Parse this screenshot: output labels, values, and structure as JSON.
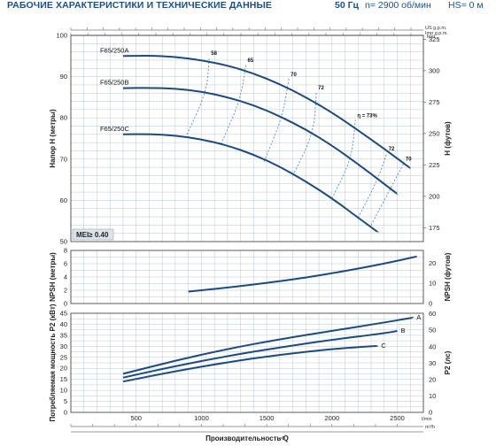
{
  "header": {
    "title": "РАБОЧИЕ ХАРАКТЕРИСТИКИ И ТЕХНИЧЕСКИЕ ДАННЫЕ",
    "frequency": "50 Гц",
    "rpm": "n= 2900 об/мин",
    "hs": "HS= 0 м"
  },
  "colors": {
    "curve": "#1a4a85",
    "eff_line": "#3d7fc4",
    "grid": "#b9c6d6",
    "frame": "#333333"
  },
  "chart_data": [
    {
      "type": "line",
      "title": "",
      "ylabel": "Напор H (метры)",
      "y2label": "H (футов)",
      "top_axis_labels": [
        "US g.p.m.",
        "Imp g.p.m."
      ],
      "top_ticks_us": [
        "0",
        "100",
        "200",
        "300",
        "400",
        "500",
        "600",
        "700",
        "800",
        "900",
        "1000",
        "1100",
        "1200",
        "1300",
        "1400",
        "1500",
        "1600",
        "1700",
        "1800",
        "1900",
        "2000",
        "2100"
      ],
      "top_ticks_imp": [
        "0",
        "100",
        "200",
        "300",
        "400",
        "500",
        "600",
        "700",
        "800",
        "900",
        "1000",
        "1100",
        "1200",
        "1300",
        "1400",
        "1500",
        "1600",
        "1700",
        "1800",
        "1900",
        "2000"
      ],
      "x_unit": "l/min",
      "xlim": [
        0,
        2700
      ],
      "ylim": [
        50,
        100
      ],
      "yticks": [
        50,
        60,
        70,
        80,
        90,
        100
      ],
      "y2_unit": "feet",
      "y2ticks": [
        175,
        200,
        225,
        250,
        275,
        300,
        325
      ],
      "badge": "MEI≥ 0.40",
      "series": [
        {
          "name": "F65/250A",
          "x": [
            400,
            600,
            800,
            1000,
            1200,
            1400,
            1600,
            1800,
            2000,
            2200,
            2400,
            2600
          ],
          "y": [
            95,
            95.1,
            94.8,
            94,
            92.7,
            90.8,
            88.2,
            85,
            81.3,
            77,
            72.5,
            67.8
          ]
        },
        {
          "name": "F65/250B",
          "x": [
            400,
            600,
            800,
            1000,
            1200,
            1400,
            1600,
            1800,
            2000,
            2200,
            2400,
            2500
          ],
          "y": [
            87.2,
            87.3,
            87.1,
            86.4,
            85,
            83.1,
            80.4,
            77.2,
            73.3,
            68.8,
            64,
            61.6
          ]
        },
        {
          "name": "F65/250C",
          "x": [
            400,
            600,
            800,
            1000,
            1200,
            1400,
            1600,
            1800,
            2000,
            2200,
            2350
          ],
          "y": [
            76,
            76.1,
            75.7,
            74.8,
            73.3,
            71.1,
            68.2,
            64.6,
            60.5,
            55.8,
            52.3
          ]
        }
      ],
      "efficiency_lines": [
        {
          "label": "58",
          "points": [
            [
              890,
              76
            ],
            [
              1040,
              86.3
            ],
            [
              1060,
              94.6
            ]
          ]
        },
        {
          "label": "65",
          "points": [
            [
              1150,
              73.6
            ],
            [
              1300,
              84.5
            ],
            [
              1340,
              92.9
            ]
          ]
        },
        {
          "label": "70",
          "points": [
            [
              1480,
              69.4
            ],
            [
              1620,
              80.2
            ],
            [
              1670,
              89.5
            ]
          ]
        },
        {
          "label": "72",
          "points": [
            [
              1700,
              66
            ],
            [
              1860,
              76.3
            ],
            [
              1880,
              86.3
            ]
          ]
        },
        {
          "label": "η = 73%",
          "points": [
            [
              2000,
              60.5
            ],
            [
              2150,
              70
            ],
            [
              2180,
              79.5
            ]
          ]
        },
        {
          "label": "72",
          "points": [
            [
              2200,
              55.8
            ],
            [
              2350,
              65
            ],
            [
              2420,
              71.5
            ]
          ]
        },
        {
          "label": "70",
          "points": [
            [
              2300,
              54
            ],
            [
              2450,
              63
            ],
            [
              2550,
              69
            ]
          ]
        }
      ]
    },
    {
      "type": "line",
      "ylabel": "NPSH (метры)",
      "y2label": "NPSH (футов)",
      "ylim": [
        0,
        8
      ],
      "yticks": [
        0,
        2,
        4,
        6,
        8
      ],
      "y2ticks": [
        0,
        10,
        20
      ],
      "series": [
        {
          "name": "NPSH",
          "x": [
            900,
            1200,
            1500,
            1800,
            2100,
            2400,
            2650
          ],
          "y": [
            1.8,
            2.4,
            3.1,
            3.9,
            4.9,
            6.0,
            7.1
          ]
        }
      ]
    },
    {
      "type": "line",
      "ylabel": "Потребляемая мощность P2 (кВт)",
      "y2label": "P2 (лс)",
      "xlabel": "Производительность Q",
      "x_unit": "l/min",
      "xlim": [
        0,
        2700
      ],
      "xticks": [
        500,
        1000,
        1500,
        2000,
        2500
      ],
      "x_bottom_ticks": [
        0,
        10,
        20,
        30,
        40,
        50,
        60,
        70,
        80,
        90,
        100,
        110,
        120,
        130,
        140,
        150
      ],
      "x_bottom_unit": "m³/h",
      "ylim": [
        0,
        45
      ],
      "yticks": [
        0,
        5,
        10,
        15,
        20,
        25,
        30,
        35,
        40,
        45
      ],
      "y2ticks": [
        0,
        10,
        20,
        30,
        40,
        50,
        60
      ],
      "series": [
        {
          "name": "A",
          "x": [
            400,
            800,
            1200,
            1600,
            2000,
            2400,
            2620
          ],
          "y": [
            17.5,
            23.5,
            28.8,
            33.2,
            37,
            40.8,
            43
          ]
        },
        {
          "name": "B",
          "x": [
            400,
            800,
            1200,
            1600,
            2000,
            2400,
            2500
          ],
          "y": [
            15.8,
            21,
            25.6,
            29.5,
            33,
            35.9,
            37
          ]
        },
        {
          "name": "C",
          "x": [
            400,
            800,
            1200,
            1600,
            2000,
            2350
          ],
          "y": [
            14,
            18.7,
            22.8,
            26.2,
            28.8,
            30.2
          ]
        }
      ]
    }
  ]
}
